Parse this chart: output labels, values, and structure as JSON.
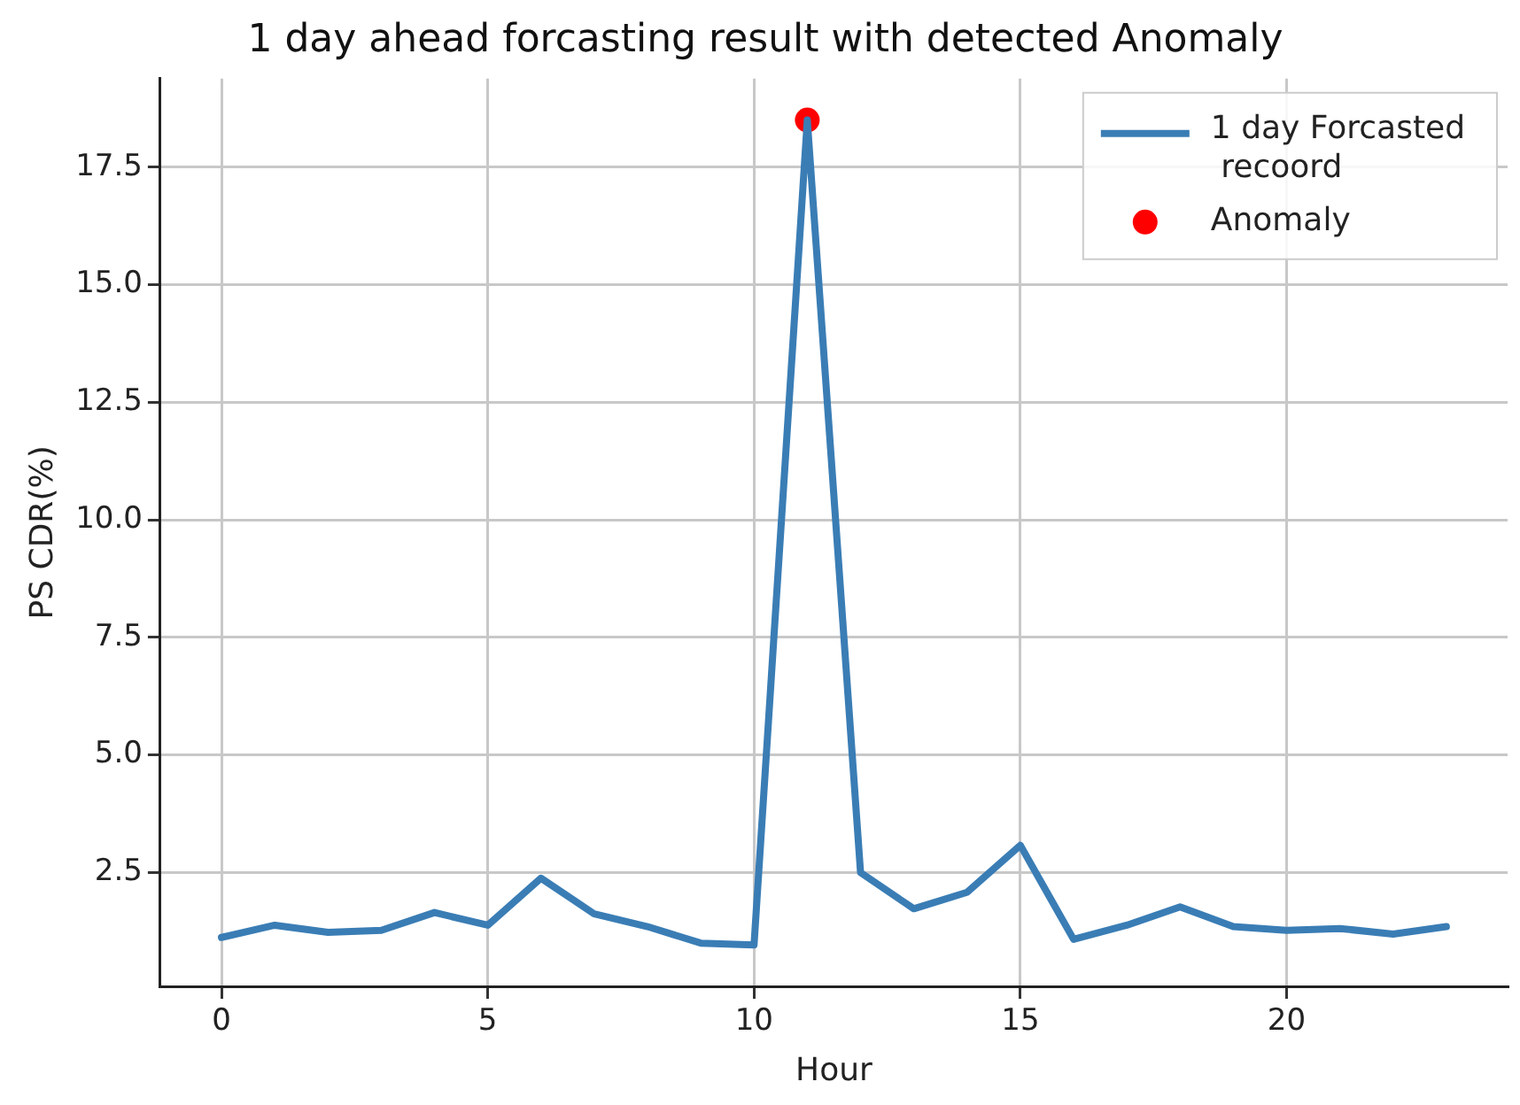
{
  "chart_data": {
    "type": "line",
    "title": "1 day ahead forcasting result with detected Anomaly",
    "xlabel": "Hour",
    "ylabel": "PS CDR(%)",
    "xlim": [
      -1.15,
      24.15
    ],
    "xticks": [
      0,
      5,
      10,
      15,
      20
    ],
    "ylim": [
      0.08,
      19.38
    ],
    "yticks": [
      {
        "value": 2.5,
        "label": "2.5"
      },
      {
        "value": 5,
        "label": "5.0"
      },
      {
        "value": 7.5,
        "label": "7.5"
      },
      {
        "value": 10,
        "label": "10.0"
      },
      {
        "value": 12.5,
        "label": "12.5"
      },
      {
        "value": 15,
        "label": "15.0"
      },
      {
        "value": 17.5,
        "label": "17.5"
      }
    ],
    "grid": true,
    "legend": "top right",
    "line_style": "solid",
    "series": [
      {
        "name": "1 day Forcasted\n recoord",
        "type": "line",
        "color": "#3a7db5",
        "x": [
          0,
          1,
          2,
          3,
          4,
          5,
          6,
          7,
          8,
          9,
          10,
          11,
          12,
          13,
          14,
          15,
          16,
          17,
          18,
          19,
          20,
          21,
          22,
          23
        ],
        "values": [
          1.12,
          1.38,
          1.23,
          1.27,
          1.65,
          1.38,
          2.38,
          1.62,
          1.35,
          1.0,
          0.96,
          18.5,
          2.5,
          1.73,
          2.08,
          3.08,
          1.08,
          1.38,
          1.77,
          1.35,
          1.27,
          1.31,
          1.19,
          1.35
        ]
      },
      {
        "name": "Anomaly",
        "type": "scatter",
        "marker": "circle",
        "color": "#ff0000",
        "x": [
          11
        ],
        "values": [
          18.5
        ]
      }
    ]
  }
}
